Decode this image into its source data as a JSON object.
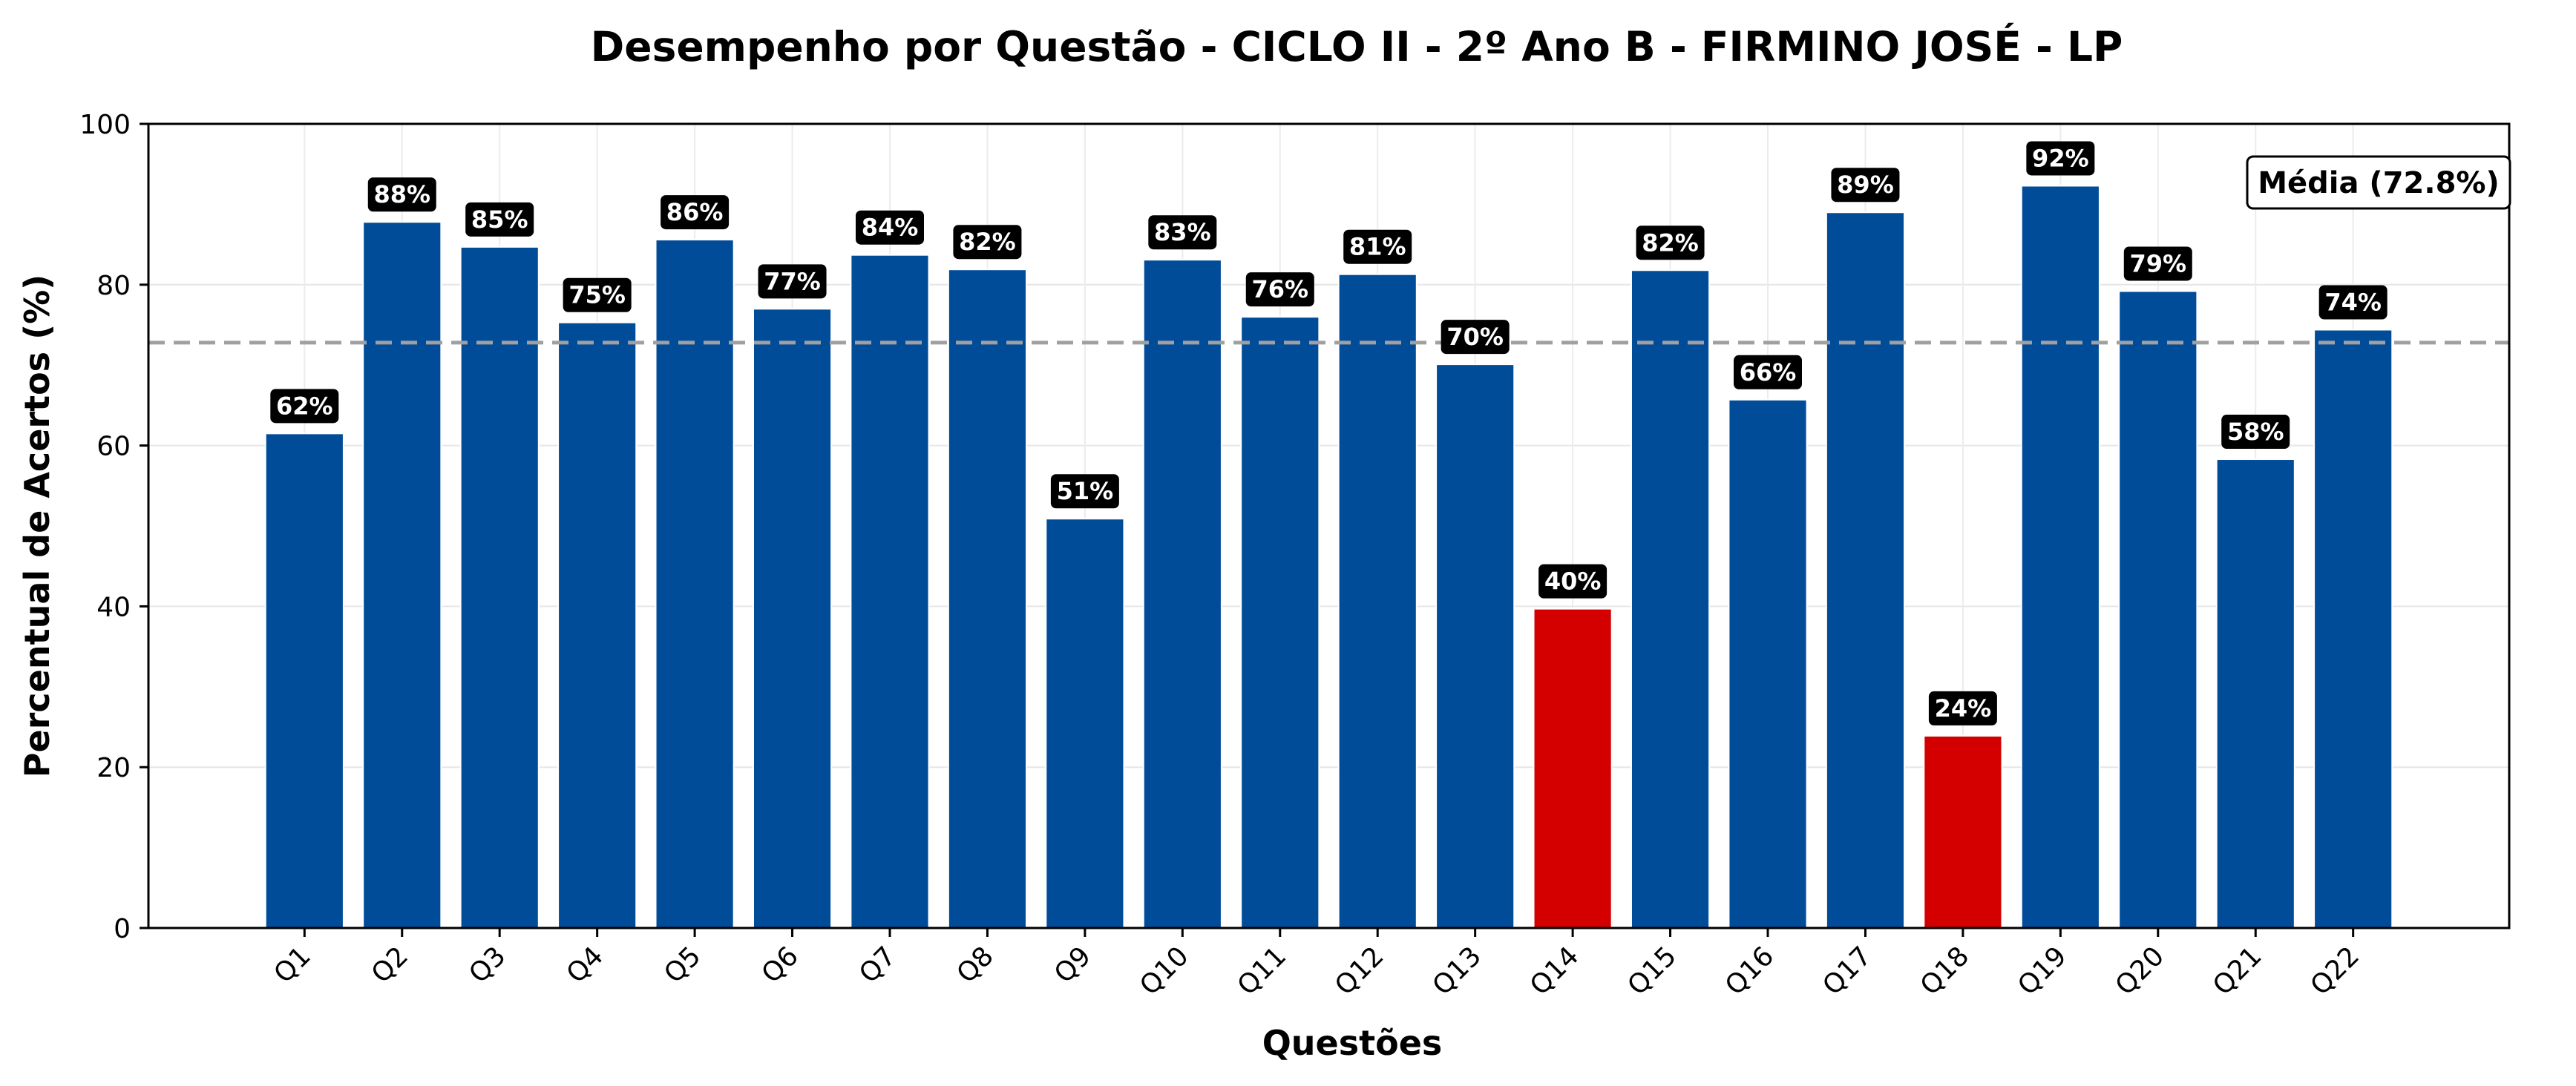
{
  "chart_data": {
    "type": "bar",
    "title": "Desempenho por Questão - CICLO II - 2º Ano B - FIRMINO JOSÉ - LP",
    "xlabel": "Questões",
    "ylabel": "Percentual de Acertos (%)",
    "ylim": [
      0,
      100
    ],
    "yticks": [
      "0",
      "20",
      "40",
      "60",
      "80",
      "100"
    ],
    "grid": true,
    "categories": [
      "Q1",
      "Q2",
      "Q3",
      "Q4",
      "Q5",
      "Q6",
      "Q7",
      "Q8",
      "Q9",
      "Q10",
      "Q11",
      "Q12",
      "Q13",
      "Q14",
      "Q15",
      "Q16",
      "Q17",
      "Q18",
      "Q19",
      "Q20",
      "Q21",
      "Q22"
    ],
    "values": [
      61.5,
      87.8,
      84.7,
      75.3,
      85.6,
      77.0,
      83.7,
      81.9,
      50.9,
      83.1,
      76.0,
      81.3,
      70.1,
      39.7,
      81.8,
      65.7,
      89.0,
      23.9,
      92.3,
      79.2,
      58.3,
      74.4
    ],
    "data_labels": [
      "62%",
      "88%",
      "85%",
      "75%",
      "86%",
      "77%",
      "84%",
      "82%",
      "51%",
      "83%",
      "76%",
      "81%",
      "70%",
      "40%",
      "82%",
      "66%",
      "89%",
      "24%",
      "92%",
      "79%",
      "58%",
      "74%"
    ],
    "bar_colors": [
      "#004c99",
      "#004c99",
      "#004c99",
      "#004c99",
      "#004c99",
      "#004c99",
      "#004c99",
      "#004c99",
      "#004c99",
      "#004c99",
      "#004c99",
      "#004c99",
      "#004c99",
      "#d40000",
      "#004c99",
      "#004c99",
      "#004c99",
      "#d40000",
      "#004c99",
      "#004c99",
      "#004c99",
      "#004c99"
    ],
    "mean": 72.8,
    "mean_label": "Média (72.8%)",
    "mean_line_color": "#a0a0a0",
    "label_box_color": "#000000"
  }
}
